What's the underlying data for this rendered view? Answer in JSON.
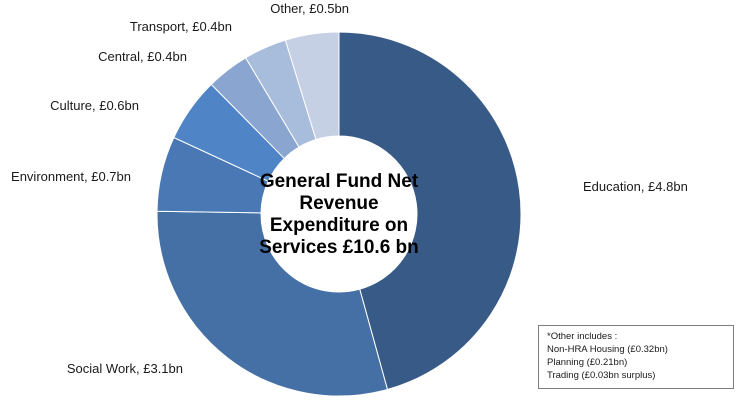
{
  "chart_data": {
    "type": "pie",
    "variant": "donut",
    "title": "General Fund Net Revenue Expenditure on Services £10.6 bn",
    "title_lines": [
      "General Fund Net",
      "Revenue",
      "Expenditure on",
      "Services £10.6 bn"
    ],
    "unit": "£bn",
    "slices": [
      {
        "name": "Education",
        "value": 4.8,
        "label": "Education, £4.8bn",
        "color": "#375a86"
      },
      {
        "name": "Social Work",
        "value": 3.1,
        "label": "Social Work, £3.1bn",
        "color": "#4470a6"
      },
      {
        "name": "Environment",
        "value": 0.7,
        "label": "Environment, £0.7bn",
        "color": "#4a78b4"
      },
      {
        "name": "Culture",
        "value": 0.6,
        "label": "Culture, £0.6bn",
        "color": "#4f85c6"
      },
      {
        "name": "Central",
        "value": 0.4,
        "label": "Central, £0.4bn",
        "color": "#8aa5d0"
      },
      {
        "name": "Transport",
        "value": 0.4,
        "label": "Transport, £0.4bn",
        "color": "#a8bcdb"
      },
      {
        "name": "Other",
        "value": 0.5,
        "label": "Other, £0.5bn",
        "color": "#c5d0e4"
      }
    ],
    "legend": "none"
  },
  "note": {
    "heading": "*Other includes :",
    "lines": [
      "Non-HRA Housing (£0.32bn)",
      "Planning (£0.21bn)",
      "Trading (£0.03bn surplus)"
    ]
  }
}
